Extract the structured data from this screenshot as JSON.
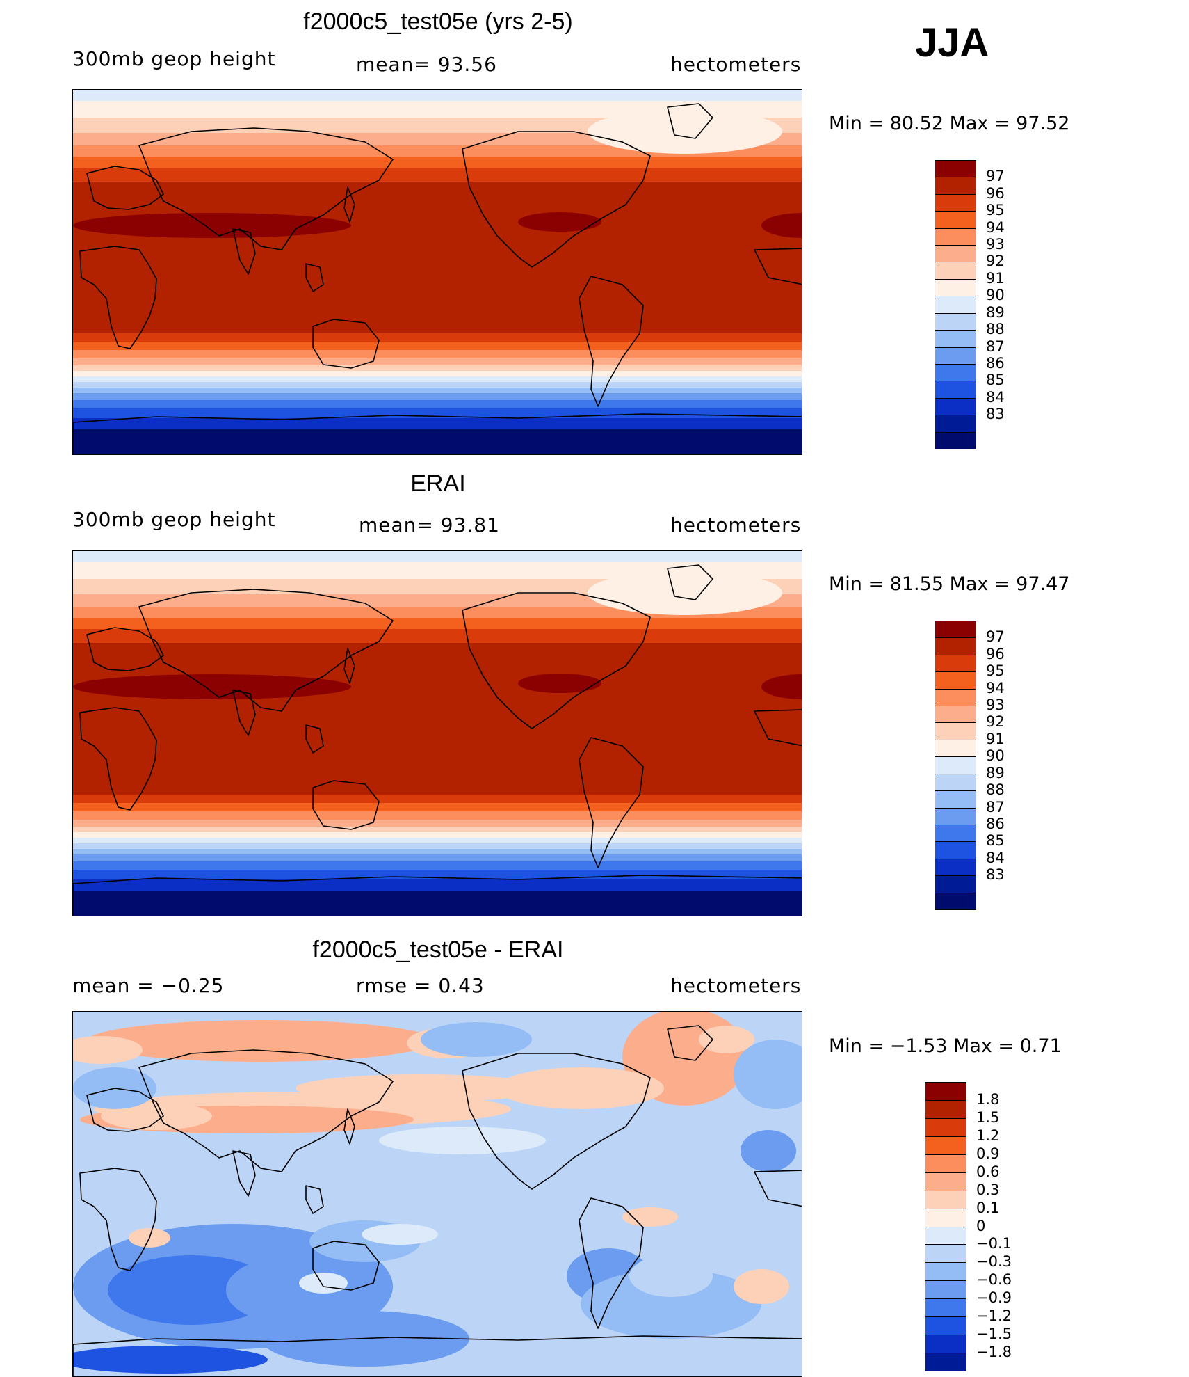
{
  "season": "JJA",
  "panels": [
    {
      "id": "model",
      "title": "f2000c5_test05e (yrs 2-5)",
      "left_label": "300mb  geop  height",
      "center_label": "mean=   93.56",
      "right_label": "hectometers",
      "minmax": "Min  =    80.52  Max  =    97.52",
      "levels": [
        "97",
        "96",
        "95",
        "94",
        "93",
        "92",
        "91",
        "90",
        "89",
        "88",
        "87",
        "86",
        "85",
        "84",
        "83"
      ]
    },
    {
      "id": "obs",
      "title": "ERAI",
      "left_label": "300mb  geop  height",
      "center_label": "mean=   93.81",
      "right_label": "hectometers",
      "minmax": "Min  =    81.55  Max  =    97.47",
      "levels": [
        "97",
        "96",
        "95",
        "94",
        "93",
        "92",
        "91",
        "90",
        "89",
        "88",
        "87",
        "86",
        "85",
        "84",
        "83"
      ]
    },
    {
      "id": "diff",
      "title": "f2000c5_test05e - ERAI",
      "left_label": "mean  =    −0.25",
      "center_label": "rmse  =     0.43",
      "right_label": "hectometers",
      "minmax": "Min  =    −1.53  Max  =     0.71",
      "levels": [
        "1.8",
        "1.5",
        "1.2",
        "0.9",
        "0.6",
        "0.3",
        "0.1",
        "0",
        "−0.1",
        "−0.3",
        "−0.6",
        "−0.9",
        "−1.2",
        "−1.5",
        "−1.8"
      ]
    }
  ],
  "colors": {
    "abs_scale": [
      "#8b0000",
      "#b22200",
      "#d93b0a",
      "#f4611f",
      "#fb8e5c",
      "#fcae8c",
      "#fdd1b8",
      "#fef0e4",
      "#dceaf9",
      "#bcd5f7",
      "#94bdf5",
      "#6b9cf0",
      "#3f78ec",
      "#1e52e0",
      "#0b2fc4",
      "#001b96",
      "#000b6e"
    ],
    "diff_scale": [
      "#8b0000",
      "#b22200",
      "#d93b0a",
      "#f4611f",
      "#fb8e5c",
      "#fcae8c",
      "#fdd1b8",
      "#fef0e4",
      "#dceaf9",
      "#bcd5f7",
      "#94bdf5",
      "#6b9cf0",
      "#3f78ec",
      "#1e52e0",
      "#0b2fc4",
      "#001b96"
    ]
  }
}
